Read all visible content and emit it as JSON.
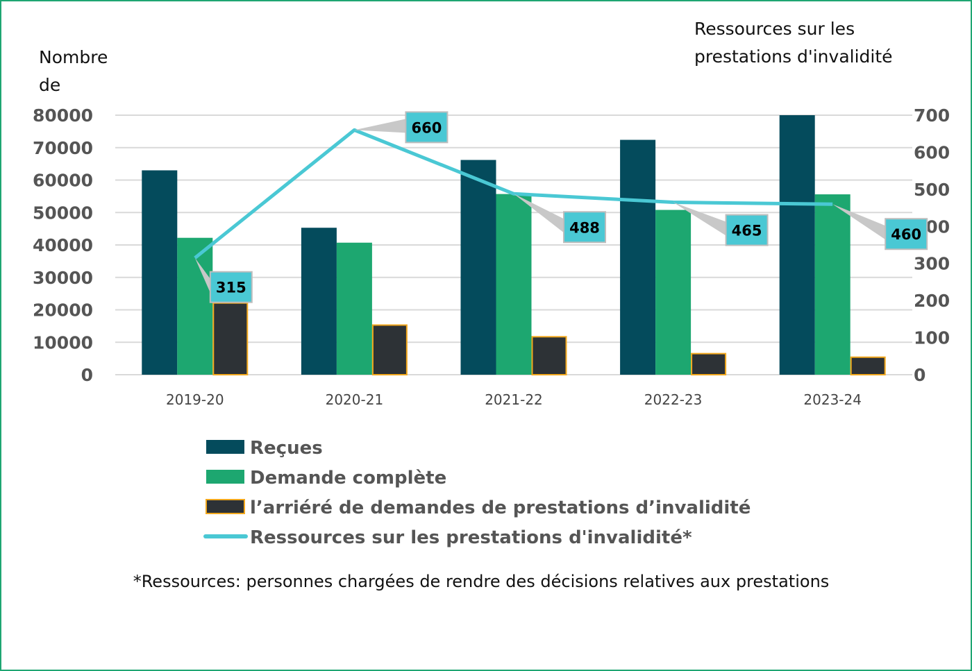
{
  "chart_data": {
    "type": "bar",
    "title": "",
    "categories": [
      "2019-20",
      "2020-21",
      "2021-22",
      "2022-23",
      "2023-24"
    ],
    "left_axis": {
      "label_lines": [
        "Nombre",
        "de"
      ],
      "ylim": [
        0,
        80000
      ],
      "ticks": [
        "0",
        "10000",
        "20000",
        "30000",
        "40000",
        "50000",
        "60000",
        "70000",
        "80000"
      ]
    },
    "right_axis": {
      "label_lines": [
        "Ressources sur les",
        "prestations d'invalidité"
      ],
      "ylim": [
        0,
        700
      ],
      "ticks": [
        "0",
        "100",
        "200",
        "300",
        "400",
        "500",
        "600",
        "700"
      ]
    },
    "grid": true,
    "series": [
      {
        "name": "Reçues",
        "type": "bar",
        "axis": "left",
        "color": "#044b5c",
        "values": [
          63000,
          45300,
          66200,
          72400,
          80000
        ]
      },
      {
        "name": "Demande complète",
        "type": "bar",
        "axis": "left",
        "color": "#1da770",
        "values": [
          42200,
          40700,
          55700,
          50800,
          55600
        ]
      },
      {
        "name": "l’arriéré de demandes de prestations d’invalidité",
        "type": "bar",
        "axis": "left",
        "color": "#2d3236",
        "border": "#f2a81d",
        "values": [
          22100,
          15300,
          11700,
          6500,
          5400
        ]
      },
      {
        "name": "Ressources sur les prestations d'invalidité*",
        "type": "line",
        "axis": "right",
        "color": "#4ac8d4",
        "values": [
          315,
          660,
          488,
          465,
          460
        ],
        "data_labels": [
          "315",
          "660",
          "488",
          "465",
          "460"
        ]
      }
    ],
    "legend_position": "bottom",
    "footnote": "*Ressources: personnes chargées de rendre des décisions relatives aux prestations"
  }
}
